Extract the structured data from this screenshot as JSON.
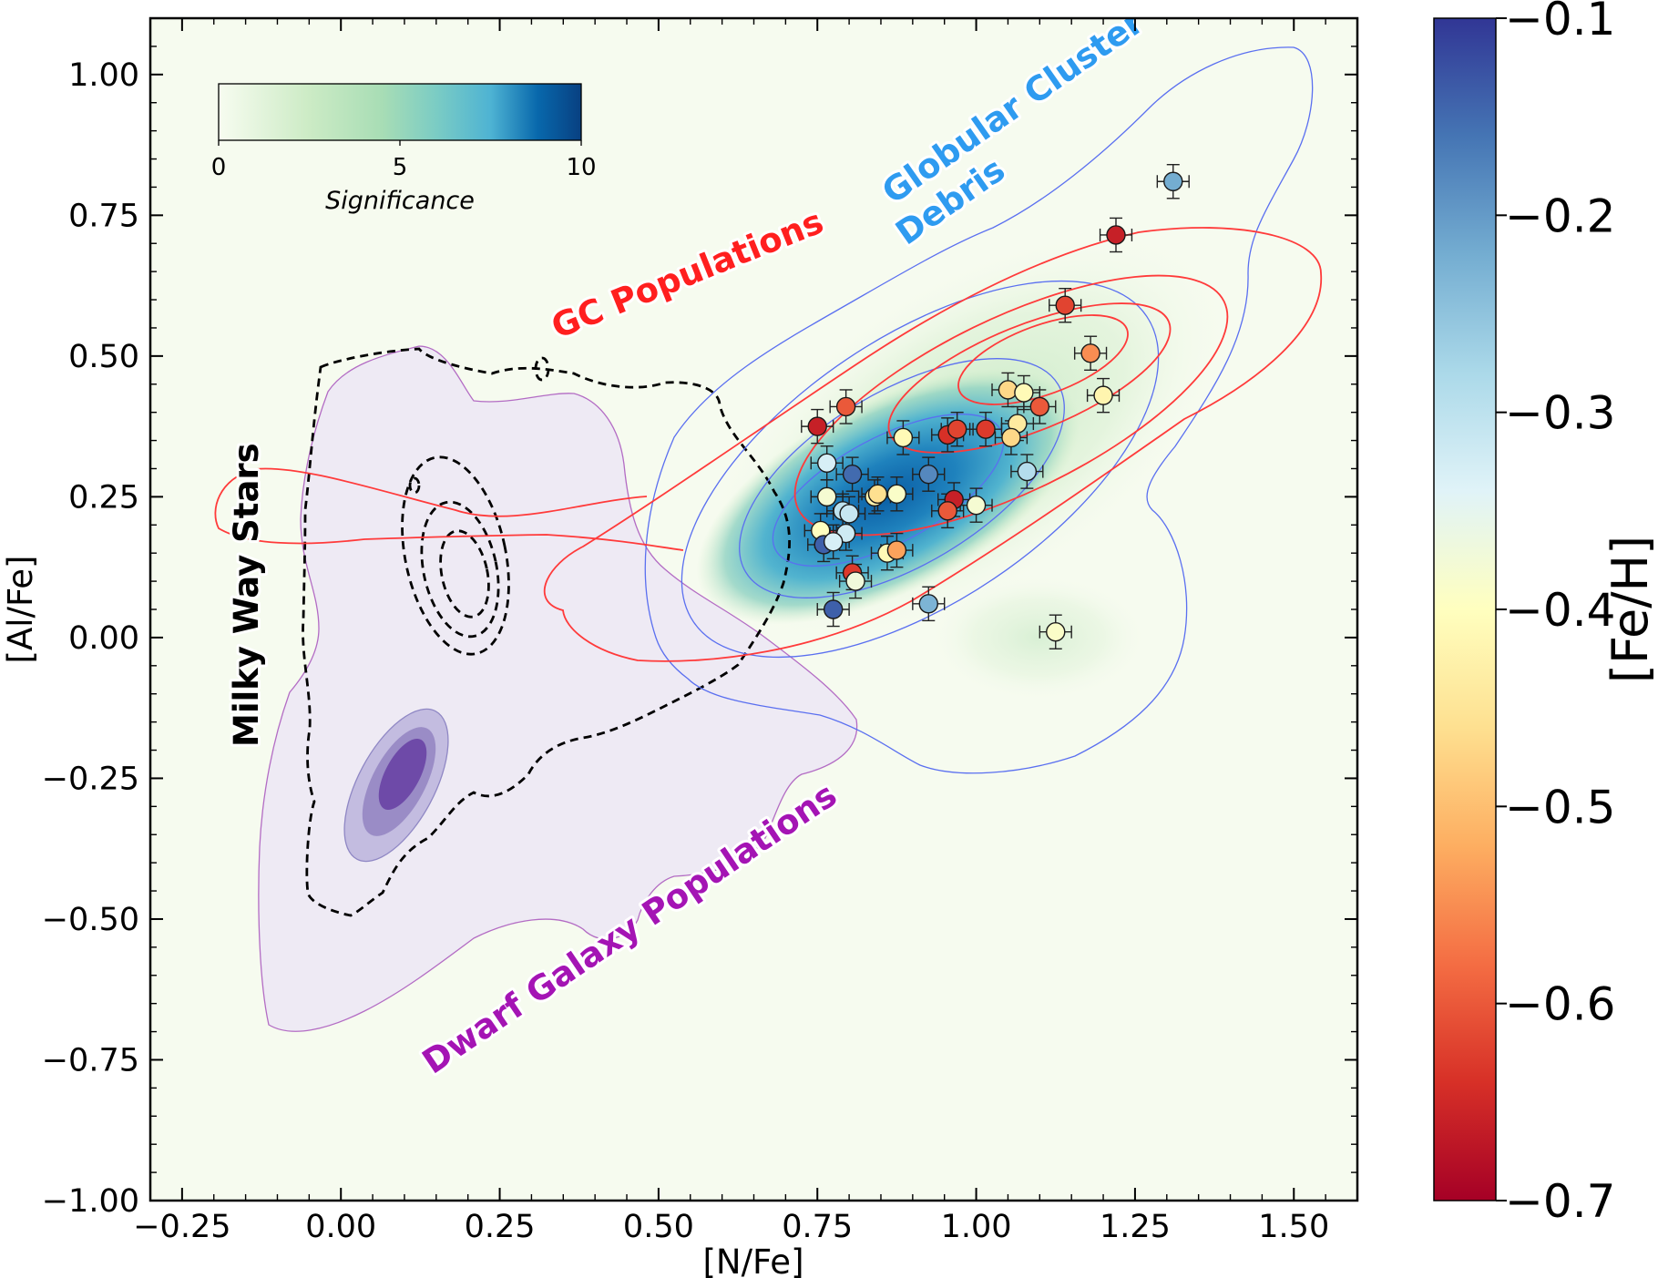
{
  "chart_data": {
    "type": "scatter",
    "xlabel": "[N/Fe]",
    "ylabel": "[Al/Fe]",
    "xlim": [
      -0.3,
      1.6
    ],
    "ylim": [
      -1.0,
      1.1
    ],
    "xticks": [
      "−0.25",
      "0.00",
      "0.25",
      "0.50",
      "0.75",
      "1.00",
      "1.25",
      "1.50"
    ],
    "xtick_values": [
      -0.25,
      0.0,
      0.25,
      0.5,
      0.75,
      1.0,
      1.25,
      1.5
    ],
    "yticks": [
      "1.00",
      "0.75",
      "0.50",
      "0.25",
      "0.00",
      "−0.25",
      "−0.50",
      "−0.75",
      "−1.00"
    ],
    "ytick_values": [
      1.0,
      0.75,
      0.5,
      0.25,
      0.0,
      -0.25,
      -0.5,
      -0.75,
      -1.0
    ],
    "colorbar": {
      "label": "[Fe/H]",
      "range": [
        -0.7,
        -0.1
      ],
      "cmap": "RdYlBu",
      "ticks": [
        "−0.1",
        "−0.2",
        "−0.3",
        "−0.4",
        "−0.5",
        "−0.6",
        "−0.7"
      ],
      "tick_values": [
        -0.1,
        -0.2,
        -0.3,
        -0.4,
        -0.5,
        -0.6,
        -0.7
      ]
    },
    "significance_bar": {
      "label": "Significance",
      "range": [
        0,
        10
      ],
      "ticks": [
        "0",
        "5",
        "10"
      ],
      "tick_values": [
        0,
        5,
        10
      ],
      "cmap": "GnBu"
    },
    "annotations": [
      {
        "text": "Globular Cluster",
        "color": "#2e9bf0"
      },
      {
        "text": "Debris",
        "color": "#2e9bf0"
      },
      {
        "text": "GC Populations",
        "color": "#ff1f1f"
      },
      {
        "text": "Milky Way Stars",
        "color": "#000000"
      },
      {
        "text": "Dwarf Galaxy Populations",
        "color": "#a414b4"
      }
    ],
    "stars": [
      {
        "x": 1.31,
        "y": 0.81,
        "feh": -0.22
      },
      {
        "x": 1.22,
        "y": 0.715,
        "feh": -0.66
      },
      {
        "x": 1.14,
        "y": 0.59,
        "feh": -0.62
      },
      {
        "x": 1.18,
        "y": 0.505,
        "feh": -0.55
      },
      {
        "x": 1.2,
        "y": 0.43,
        "feh": -0.42
      },
      {
        "x": 1.05,
        "y": 0.44,
        "feh": -0.47
      },
      {
        "x": 1.075,
        "y": 0.435,
        "feh": -0.41
      },
      {
        "x": 1.1,
        "y": 0.41,
        "feh": -0.6
      },
      {
        "x": 0.795,
        "y": 0.41,
        "feh": -0.6
      },
      {
        "x": 0.75,
        "y": 0.375,
        "feh": -0.66
      },
      {
        "x": 0.885,
        "y": 0.355,
        "feh": -0.41
      },
      {
        "x": 0.955,
        "y": 0.36,
        "feh": -0.64
      },
      {
        "x": 0.97,
        "y": 0.37,
        "feh": -0.62
      },
      {
        "x": 1.015,
        "y": 0.37,
        "feh": -0.63
      },
      {
        "x": 1.065,
        "y": 0.38,
        "feh": -0.44
      },
      {
        "x": 1.055,
        "y": 0.355,
        "feh": -0.47
      },
      {
        "x": 1.08,
        "y": 0.295,
        "feh": -0.29
      },
      {
        "x": 0.765,
        "y": 0.31,
        "feh": -0.33
      },
      {
        "x": 0.805,
        "y": 0.29,
        "feh": -0.15
      },
      {
        "x": 0.925,
        "y": 0.29,
        "feh": -0.18
      },
      {
        "x": 0.765,
        "y": 0.25,
        "feh": -0.38
      },
      {
        "x": 0.84,
        "y": 0.25,
        "feh": -0.42
      },
      {
        "x": 0.845,
        "y": 0.255,
        "feh": -0.46
      },
      {
        "x": 0.875,
        "y": 0.255,
        "feh": -0.39
      },
      {
        "x": 0.965,
        "y": 0.245,
        "feh": -0.66
      },
      {
        "x": 1.0,
        "y": 0.235,
        "feh": -0.38
      },
      {
        "x": 0.79,
        "y": 0.225,
        "feh": -0.3
      },
      {
        "x": 0.8,
        "y": 0.22,
        "feh": -0.31
      },
      {
        "x": 0.955,
        "y": 0.225,
        "feh": -0.6
      },
      {
        "x": 0.755,
        "y": 0.19,
        "feh": -0.4
      },
      {
        "x": 0.795,
        "y": 0.185,
        "feh": -0.32
      },
      {
        "x": 0.76,
        "y": 0.165,
        "feh": -0.14
      },
      {
        "x": 0.775,
        "y": 0.17,
        "feh": -0.33
      },
      {
        "x": 0.86,
        "y": 0.15,
        "feh": -0.41
      },
      {
        "x": 0.875,
        "y": 0.155,
        "feh": -0.53
      },
      {
        "x": 0.805,
        "y": 0.115,
        "feh": -0.63
      },
      {
        "x": 0.81,
        "y": 0.1,
        "feh": -0.37
      },
      {
        "x": 0.775,
        "y": 0.05,
        "feh": -0.14
      },
      {
        "x": 0.925,
        "y": 0.06,
        "feh": -0.23
      },
      {
        "x": 1.125,
        "y": 0.01,
        "feh": -0.39
      }
    ]
  }
}
